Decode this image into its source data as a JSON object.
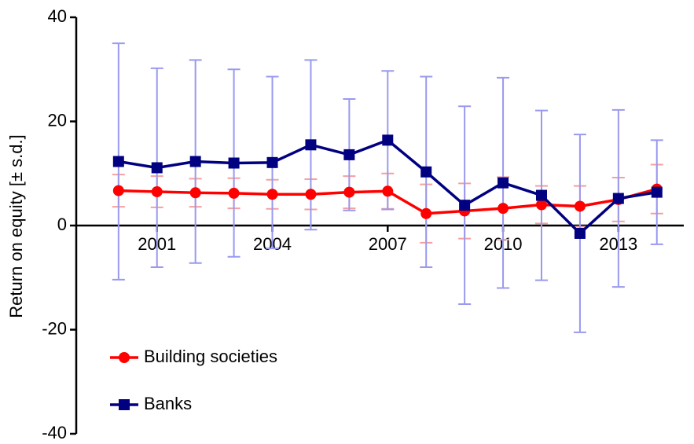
{
  "chart_data": {
    "type": "line",
    "y_label": "Return on equity [± s.d.]",
    "x": [
      2000,
      2001,
      2002,
      2003,
      2004,
      2005,
      2006,
      2007,
      2008,
      2009,
      2010,
      2011,
      2012,
      2013,
      2014
    ],
    "xlim": [
      1998.9,
      2014.7
    ],
    "xticks": [
      2001,
      2004,
      2007,
      2010,
      2013
    ],
    "ylim": [
      -40,
      40
    ],
    "yticks": [
      -40,
      -20,
      0,
      20,
      40
    ],
    "legend": "lower left",
    "series": [
      {
        "name": "Building societies",
        "color": "#ff0000",
        "error_color": "#f4a0a0",
        "marker": "circle",
        "values": [
          6.7,
          6.5,
          6.3,
          6.2,
          6.0,
          6.0,
          6.4,
          6.6,
          2.3,
          2.8,
          3.3,
          4.0,
          3.7,
          5.0,
          7.0
        ],
        "errors": [
          3.1,
          3.0,
          2.7,
          2.9,
          2.8,
          2.9,
          3.1,
          3.4,
          5.6,
          5.3,
          6.0,
          3.6,
          3.9,
          4.2,
          4.7
        ]
      },
      {
        "name": "Banks",
        "color": "#000080",
        "error_color": "#9999f0",
        "marker": "square",
        "values": [
          12.3,
          11.1,
          12.3,
          12.0,
          12.1,
          15.5,
          13.6,
          16.4,
          10.3,
          3.9,
          8.2,
          5.8,
          -1.5,
          5.2,
          6.4
        ],
        "errors": [
          22.7,
          19.1,
          19.5,
          18.0,
          16.5,
          16.3,
          10.7,
          13.3,
          18.3,
          19.0,
          20.2,
          16.3,
          19.0,
          17.0,
          10.0
        ]
      }
    ]
  }
}
